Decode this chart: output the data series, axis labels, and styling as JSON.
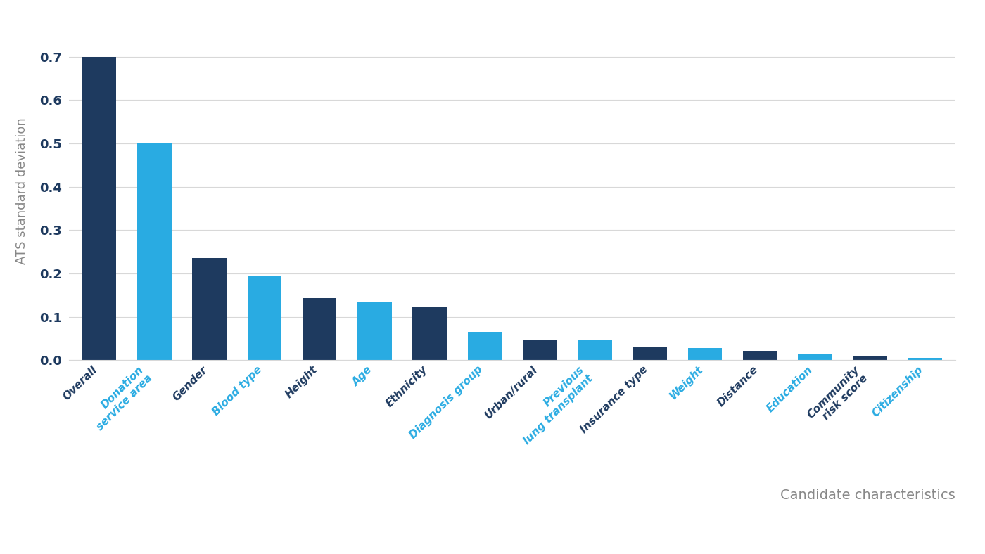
{
  "categories": [
    "Overall",
    "Donation\nservice area",
    "Gender",
    "Blood type",
    "Height",
    "Age",
    "Ethnicity",
    "Diagnosis group",
    "Urban/rural",
    "Previous\nlung transplant",
    "Insurance type",
    "Weight",
    "Distance",
    "Education",
    "Community\nrisk score",
    "Citizenship"
  ],
  "values": [
    0.7,
    0.5,
    0.235,
    0.195,
    0.143,
    0.135,
    0.122,
    0.065,
    0.048,
    0.047,
    0.029,
    0.028,
    0.022,
    0.015,
    0.008,
    0.005
  ],
  "bar_colors": [
    "#1e3a5f",
    "#29abe2",
    "#1e3a5f",
    "#29abe2",
    "#1e3a5f",
    "#29abe2",
    "#1e3a5f",
    "#29abe2",
    "#1e3a5f",
    "#29abe2",
    "#1e3a5f",
    "#29abe2",
    "#1e3a5f",
    "#29abe2",
    "#1e3a5f",
    "#29abe2"
  ],
  "label_colors": [
    "#1e3a5f",
    "#29abe2",
    "#1e3a5f",
    "#29abe2",
    "#1e3a5f",
    "#29abe2",
    "#1e3a5f",
    "#29abe2",
    "#1e3a5f",
    "#29abe2",
    "#1e3a5f",
    "#29abe2",
    "#1e3a5f",
    "#29abe2",
    "#1e3a5f",
    "#29abe2"
  ],
  "ytick_color": "#1e3a5f",
  "ylabel": "ATS standard deviation",
  "ylabel_color": "#888888",
  "xlabel": "Candidate characteristics",
  "xlabel_color": "#888888",
  "ylim": [
    0,
    0.78
  ],
  "yticks": [
    0.0,
    0.1,
    0.2,
    0.3,
    0.4,
    0.5,
    0.6,
    0.7
  ],
  "background_color": "#ffffff",
  "grid_color": "#d8d8d8"
}
